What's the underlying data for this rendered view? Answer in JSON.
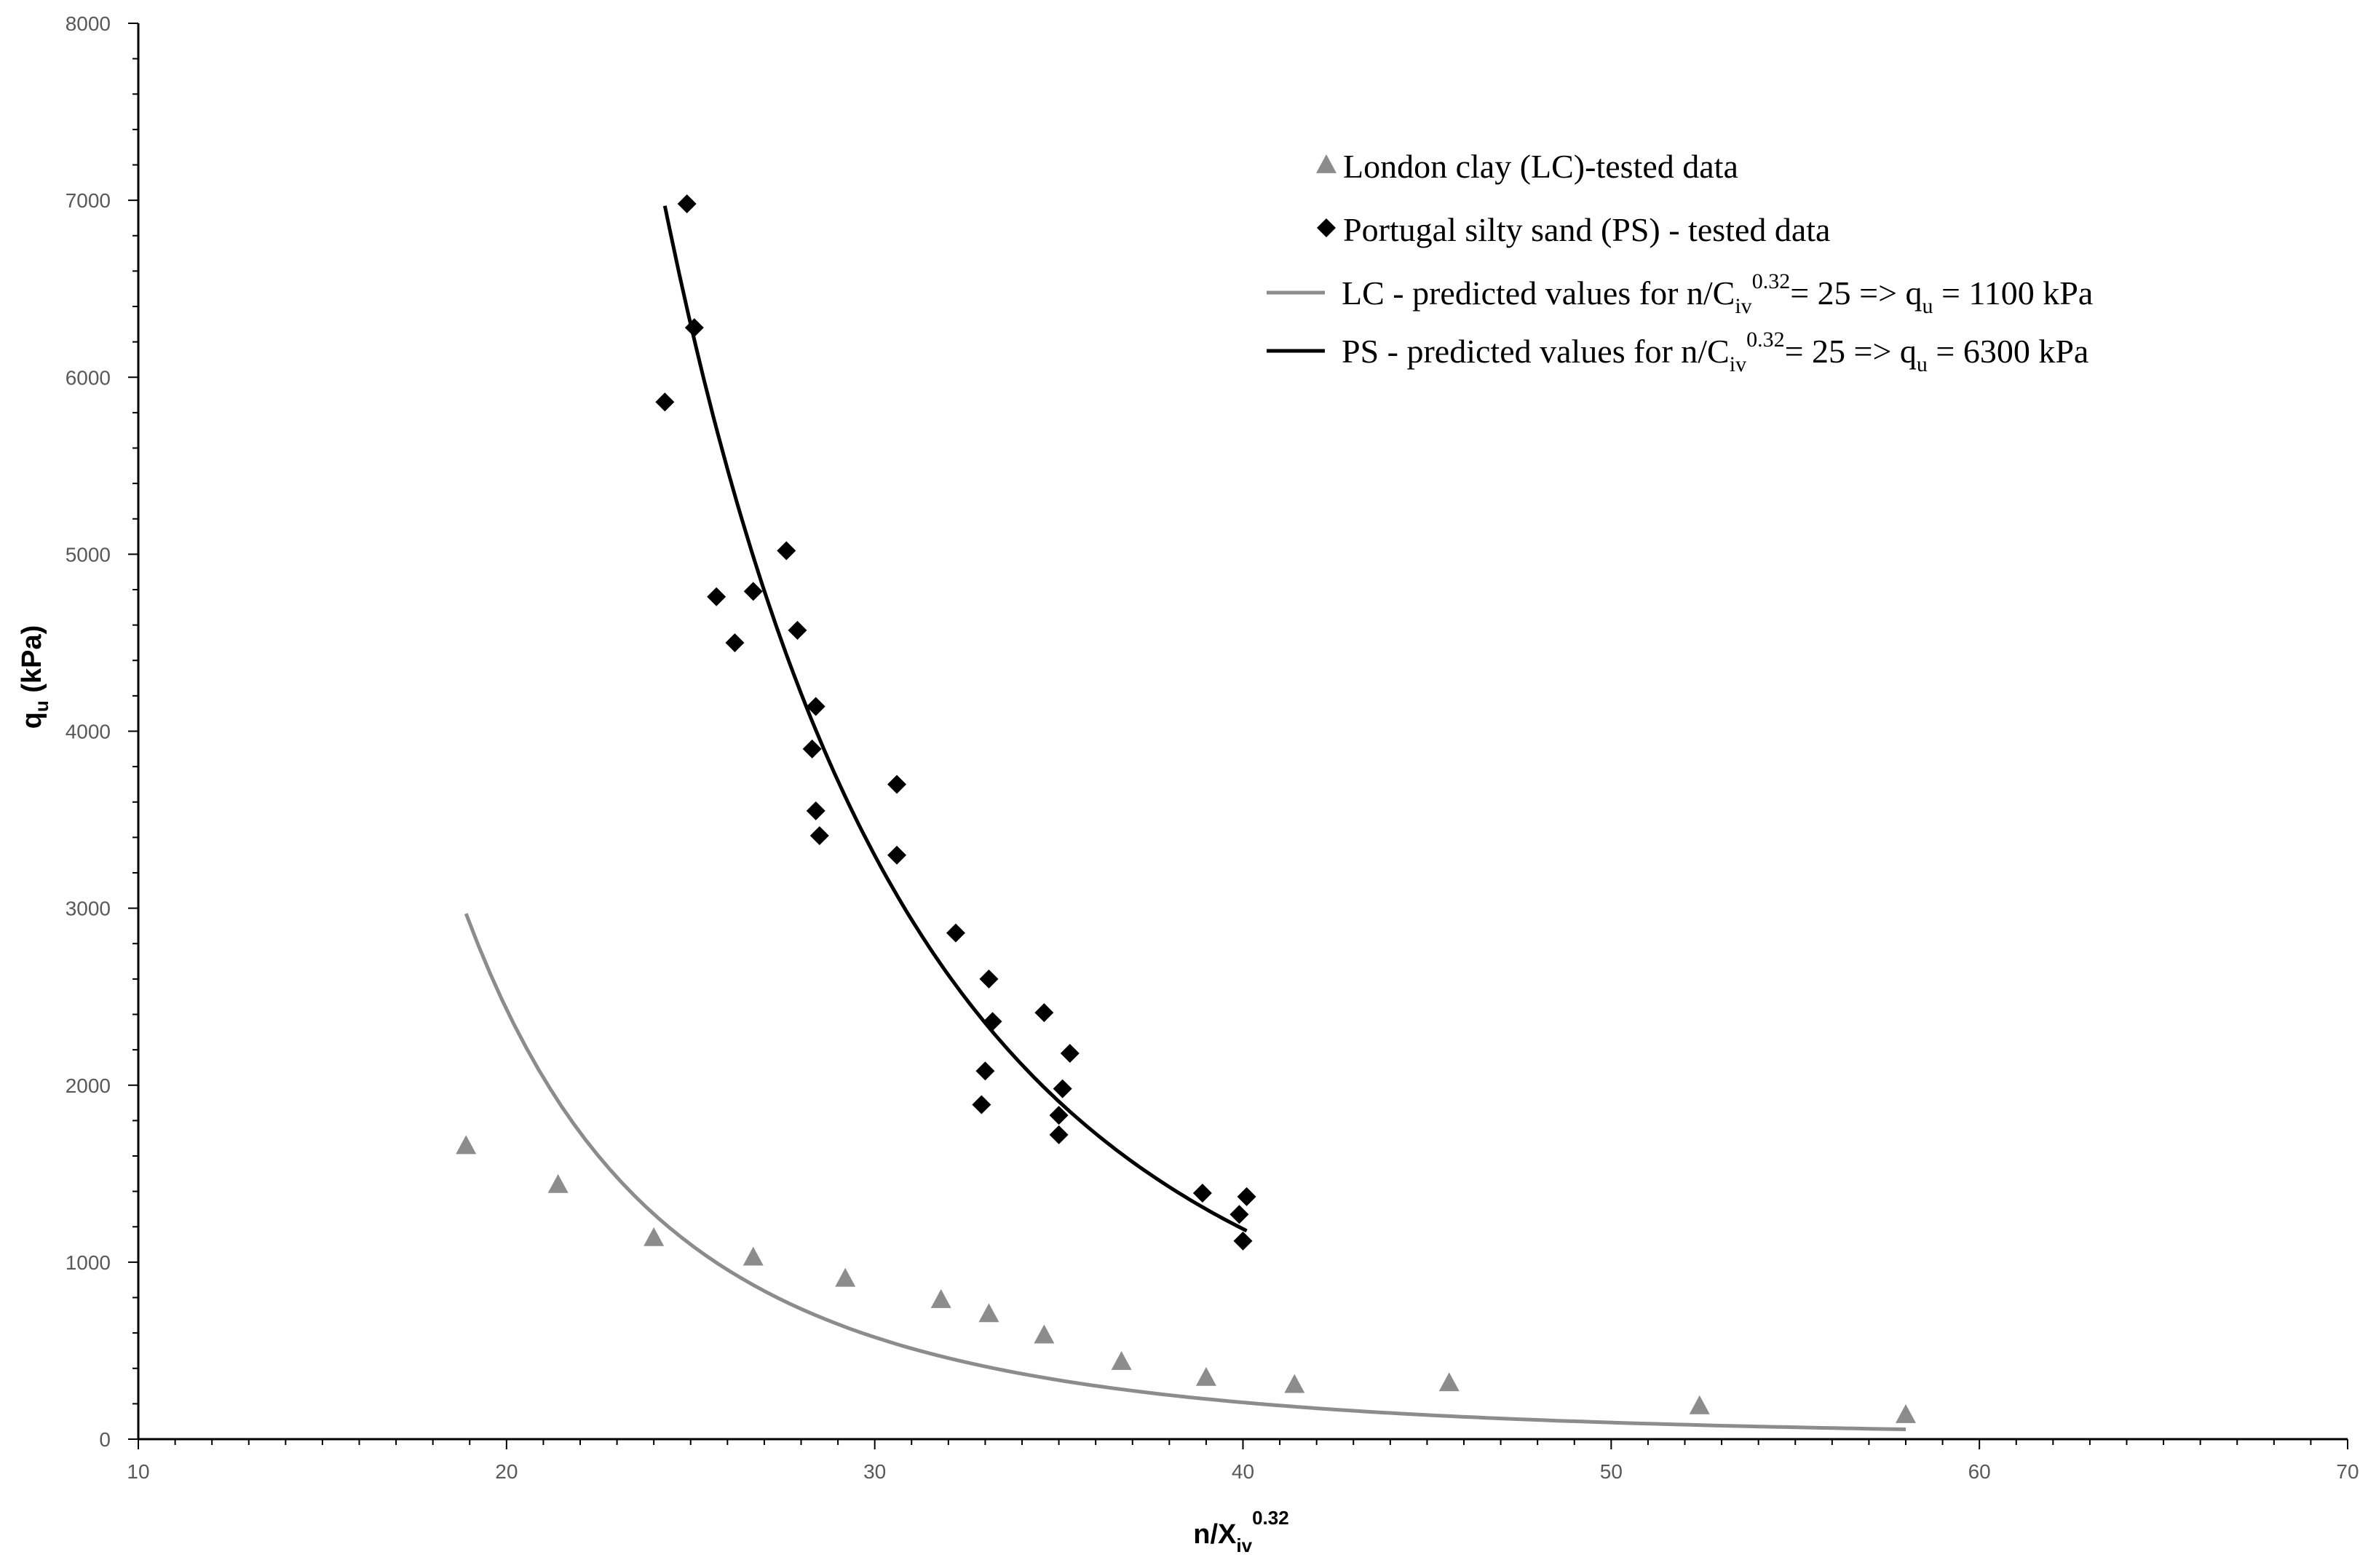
{
  "chart_data": {
    "type": "scatter",
    "xlabel": {
      "base": "n/X",
      "sub": "iv",
      "sup": "0.32"
    },
    "ylabel": {
      "base": "q",
      "sub": "u",
      "rest": " (kPa)"
    },
    "xlim": [
      10,
      70
    ],
    "ylim": [
      0,
      8000
    ],
    "x_ticks": [
      10,
      20,
      30,
      40,
      50,
      60,
      70
    ],
    "y_ticks": [
      0,
      1000,
      2000,
      3000,
      4000,
      5000,
      6000,
      7000,
      8000
    ],
    "grid": false,
    "legend_position": "top-right",
    "series": [
      {
        "name": "London clay (LC)-tested data",
        "kind": "points",
        "marker": "triangle",
        "color": "#8c8c8c",
        "points": [
          [
            18.9,
            1660
          ],
          [
            21.4,
            1440
          ],
          [
            24.0,
            1140
          ],
          [
            26.7,
            1030
          ],
          [
            29.2,
            910
          ],
          [
            31.8,
            790
          ],
          [
            33.1,
            710
          ],
          [
            34.6,
            590
          ],
          [
            36.7,
            440
          ],
          [
            39.0,
            350
          ],
          [
            41.4,
            310
          ],
          [
            45.6,
            320
          ],
          [
            52.4,
            190
          ],
          [
            58.0,
            140
          ]
        ]
      },
      {
        "name": "Portugal silty sand (PS) - tested data",
        "kind": "points",
        "marker": "diamond",
        "color": "#000000",
        "points": [
          [
            24.9,
            6980
          ],
          [
            25.1,
            6280
          ],
          [
            24.3,
            5860
          ],
          [
            25.7,
            4760
          ],
          [
            26.2,
            4500
          ],
          [
            26.7,
            4790
          ],
          [
            27.6,
            5020
          ],
          [
            27.9,
            4570
          ],
          [
            28.4,
            4140
          ],
          [
            28.3,
            3900
          ],
          [
            28.4,
            3550
          ],
          [
            28.5,
            3410
          ],
          [
            30.6,
            3700
          ],
          [
            30.6,
            3300
          ],
          [
            32.2,
            2860
          ],
          [
            33.1,
            2600
          ],
          [
            33.2,
            2360
          ],
          [
            33.0,
            2080
          ],
          [
            32.9,
            1890
          ],
          [
            34.6,
            2410
          ],
          [
            35.3,
            2180
          ],
          [
            35.1,
            1980
          ],
          [
            35.0,
            1830
          ],
          [
            35.0,
            1720
          ],
          [
            38.9,
            1390
          ],
          [
            39.9,
            1270
          ],
          [
            40.1,
            1370
          ],
          [
            40.0,
            1120
          ]
        ]
      },
      {
        "name": "LC - predicted values for n/C",
        "name_sub": "iv",
        "name_sup": "0.32",
        "name_rest": "= 25 => q",
        "name_rest_sub": "u",
        "name_end": " = 1100 kPa",
        "kind": "curve",
        "color": "#8c8c8c",
        "ref_x": 25,
        "ref_y": 1100,
        "exponent": 3.55,
        "x_range": [
          18.9,
          58.0
        ]
      },
      {
        "name": "PS - predicted values for n/C",
        "name_sub": "iv",
        "name_sup": "0.32",
        "name_rest": "= 25 => q",
        "name_rest_sub": "u",
        "name_end": " = 6300 kPa",
        "kind": "curve",
        "color": "#000000",
        "ref_x": 25,
        "ref_y": 6300,
        "exponent": 3.55,
        "x_range": [
          24.3,
          40.1
        ]
      }
    ]
  }
}
